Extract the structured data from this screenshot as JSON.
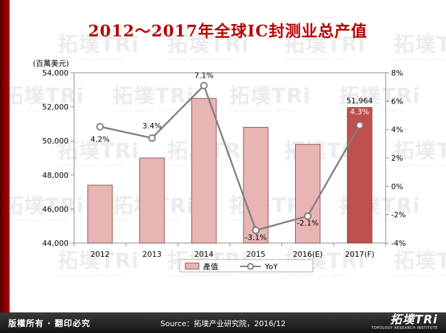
{
  "title": "2012～2017年全球IC封测业总产值",
  "footer": {
    "rights": "版權所有 · 翻印必究",
    "source": "Source：拓墣产业研究院，2016/12",
    "logo_text": "拓墣TRi",
    "logo_subtext": "TOPOLOGY RESEARCH INSTITUTE"
  },
  "watermark": {
    "text": "拓墣TRi",
    "subtext": "TOPOLOGY RESEARCH INSTITUTE"
  },
  "chart_data": {
    "type": "bar",
    "categories": [
      "2012",
      "2013",
      "2014",
      "2015",
      "2016(E)",
      "2017(F)"
    ],
    "unit_label": "(百萬美元)",
    "y_left": {
      "min": 44000,
      "max": 54000,
      "ticks": [
        "44,000",
        "46,000",
        "48,000",
        "50,000",
        "52,000",
        "54,000"
      ]
    },
    "y_right": {
      "min": -4,
      "max": 8,
      "ticks": [
        "-4%",
        "-2%",
        "0%",
        "2%",
        "4%",
        "6%",
        "8%"
      ]
    },
    "series": [
      {
        "name": "產值",
        "kind": "bar",
        "values": [
          47400,
          49000,
          52500,
          50800,
          49800,
          51964
        ]
      },
      {
        "name": "YoY",
        "kind": "line",
        "values": [
          4.2,
          3.4,
          7.1,
          -3.1,
          -2.1,
          4.3
        ]
      }
    ],
    "bar_value_labels": [
      "",
      "",
      "",
      "",
      "",
      "51,964"
    ],
    "yoy_labels": [
      "4.2%",
      "3.4%",
      "7.1%",
      "-3.1%",
      "-2.1%",
      "4.3%"
    ],
    "colors": {
      "bar": "#e8b4b4",
      "bar_border": "#7a3a3a",
      "bar_highlight": "#c0504d",
      "line": "#808080"
    },
    "grid": false,
    "legend_position": "bottom"
  }
}
